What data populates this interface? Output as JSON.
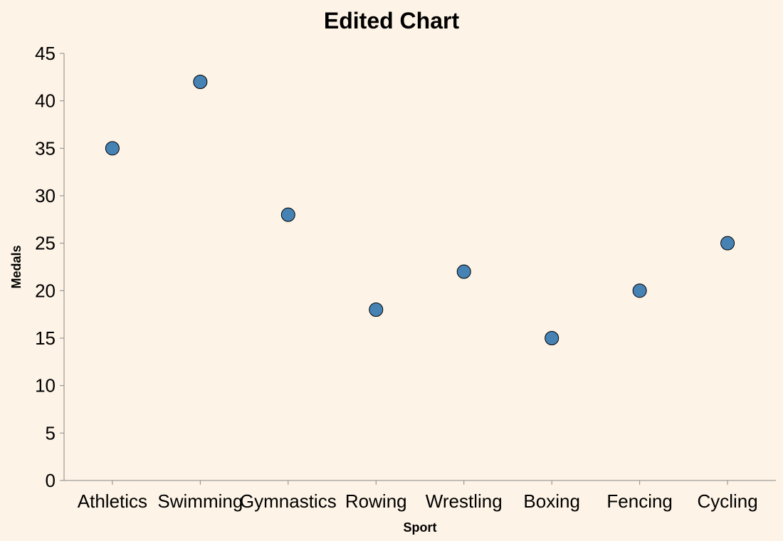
{
  "chart_data": {
    "type": "scatter",
    "title": "Edited Chart",
    "xlabel": "Sport",
    "ylabel": "Medals",
    "categories": [
      "Athletics",
      "Swimming",
      "Gymnastics",
      "Rowing",
      "Wrestling",
      "Boxing",
      "Fencing",
      "Cycling"
    ],
    "values": [
      35,
      42,
      28,
      18,
      22,
      15,
      20,
      25
    ],
    "ylim": [
      0,
      45
    ],
    "yticks": [
      0,
      5,
      10,
      15,
      20,
      25,
      30,
      35,
      40,
      45
    ],
    "grid": false,
    "point_color": "#4682b4",
    "background": "#fdf3e6"
  }
}
